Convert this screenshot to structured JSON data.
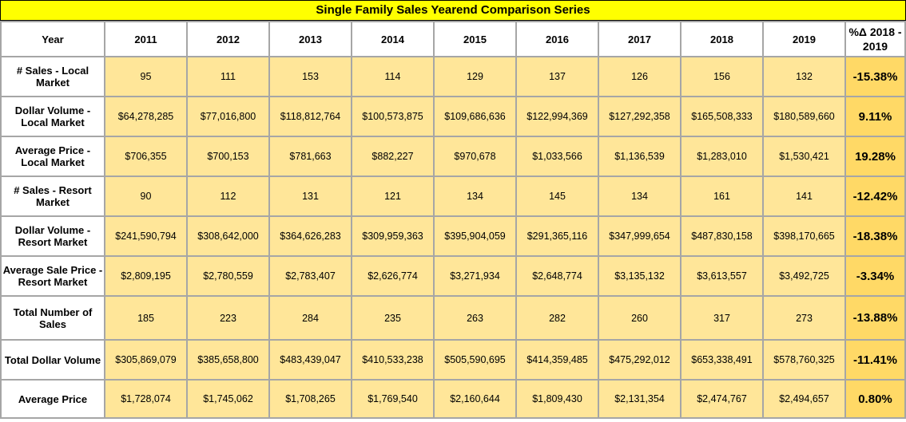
{
  "title": "Single Family Sales Yearend Comparison Series",
  "headers": {
    "year": "Year",
    "years": [
      "2011",
      "2012",
      "2013",
      "2014",
      "2015",
      "2016",
      "2017",
      "2018",
      "2019"
    ],
    "change": "%Δ 2018 - 2019"
  },
  "rows": [
    {
      "label": "# Sales - Local Market",
      "values": [
        "95",
        "111",
        "153",
        "114",
        "129",
        "137",
        "126",
        "156",
        "132"
      ],
      "change": "-15.38%"
    },
    {
      "label": "Dollar Volume - Local Market",
      "values": [
        "$64,278,285",
        "$77,016,800",
        "$118,812,764",
        "$100,573,875",
        "$109,686,636",
        "$122,994,369",
        "$127,292,358",
        "$165,508,333",
        "$180,589,660"
      ],
      "change": "9.11%"
    },
    {
      "label": "Average Price - Local Market",
      "values": [
        "$706,355",
        "$700,153",
        "$781,663",
        "$882,227",
        "$970,678",
        "$1,033,566",
        "$1,136,539",
        "$1,283,010",
        "$1,530,421"
      ],
      "change": "19.28%"
    },
    {
      "label": "# Sales - Resort Market",
      "values": [
        "90",
        "112",
        "131",
        "121",
        "134",
        "145",
        "134",
        "161",
        "141"
      ],
      "change": "-12.42%"
    },
    {
      "label": "Dollar Volume - Resort Market",
      "values": [
        "$241,590,794",
        "$308,642,000",
        "$364,626,283",
        "$309,959,363",
        "$395,904,059",
        "$291,365,116",
        "$347,999,654",
        "$487,830,158",
        "$398,170,665"
      ],
      "change": "-18.38%"
    },
    {
      "label": "Average Sale Price - Resort Market",
      "values": [
        "$2,809,195",
        "$2,780,559",
        "$2,783,407",
        "$2,626,774",
        "$3,271,934",
        "$2,648,774",
        "$3,135,132",
        "$3,613,557",
        "$3,492,725"
      ],
      "change": "-3.34%"
    },
    {
      "label": "Total Number of Sales",
      "values": [
        "185",
        "223",
        "284",
        "235",
        "263",
        "282",
        "260",
        "317",
        "273"
      ],
      "change": "-13.88%"
    },
    {
      "label": "Total Dollar Volume",
      "values": [
        "$305,869,079",
        "$385,658,800",
        "$483,439,047",
        "$410,533,238",
        "$505,590,695",
        "$414,359,485",
        "$475,292,012",
        "$653,338,491",
        "$578,760,325"
      ],
      "change": "-11.41%"
    },
    {
      "label": "Average Price",
      "values": [
        "$1,728,074",
        "$1,745,062",
        "$1,708,265",
        "$1,769,540",
        "$2,160,644",
        "$1,809,430",
        "$2,131,354",
        "$2,474,767",
        "$2,494,657"
      ],
      "change": "0.80%"
    }
  ],
  "colors": {
    "title_background": "#ffff00",
    "value_cell": "#ffe699",
    "change_cell": "#ffd966",
    "grid_line": "#a6a6a6"
  },
  "chart_data": {
    "type": "table",
    "title": "Single Family Sales Yearend Comparison Series",
    "columns": [
      "Year",
      "2011",
      "2012",
      "2013",
      "2014",
      "2015",
      "2016",
      "2017",
      "2018",
      "2019",
      "%Δ 2018 - 2019"
    ],
    "x": [
      2011,
      2012,
      2013,
      2014,
      2015,
      2016,
      2017,
      2018,
      2019
    ],
    "series": [
      {
        "name": "# Sales - Local Market",
        "values": [
          95,
          111,
          153,
          114,
          129,
          137,
          126,
          156,
          132
        ],
        "change_pct": -15.38
      },
      {
        "name": "Dollar Volume - Local Market",
        "values": [
          64278285,
          77016800,
          118812764,
          100573875,
          109686636,
          122994369,
          127292358,
          165508333,
          180589660
        ],
        "change_pct": 9.11
      },
      {
        "name": "Average Price - Local Market",
        "values": [
          706355,
          700153,
          781663,
          882227,
          970678,
          1033566,
          1136539,
          1283010,
          1530421
        ],
        "change_pct": 19.28
      },
      {
        "name": "# Sales - Resort Market",
        "values": [
          90,
          112,
          131,
          121,
          134,
          145,
          134,
          161,
          141
        ],
        "change_pct": -12.42
      },
      {
        "name": "Dollar Volume - Resort Market",
        "values": [
          241590794,
          308642000,
          364626283,
          309959363,
          395904059,
          291365116,
          347999654,
          487830158,
          398170665
        ],
        "change_pct": -18.38
      },
      {
        "name": "Average Sale Price - Resort Market",
        "values": [
          2809195,
          2780559,
          2783407,
          2626774,
          3271934,
          2648774,
          3135132,
          3613557,
          3492725
        ],
        "change_pct": -3.34
      },
      {
        "name": "Total Number of Sales",
        "values": [
          185,
          223,
          284,
          235,
          263,
          282,
          260,
          317,
          273
        ],
        "change_pct": -13.88
      },
      {
        "name": "Total Dollar Volume",
        "values": [
          305869079,
          385658800,
          483439047,
          410533238,
          505590695,
          414359485,
          475292012,
          653338491,
          578760325
        ],
        "change_pct": -11.41
      },
      {
        "name": "Average Price",
        "values": [
          1728074,
          1745062,
          1708265,
          1769540,
          2160644,
          1809430,
          2131354,
          2474767,
          2494657
        ],
        "change_pct": 0.8
      }
    ]
  }
}
